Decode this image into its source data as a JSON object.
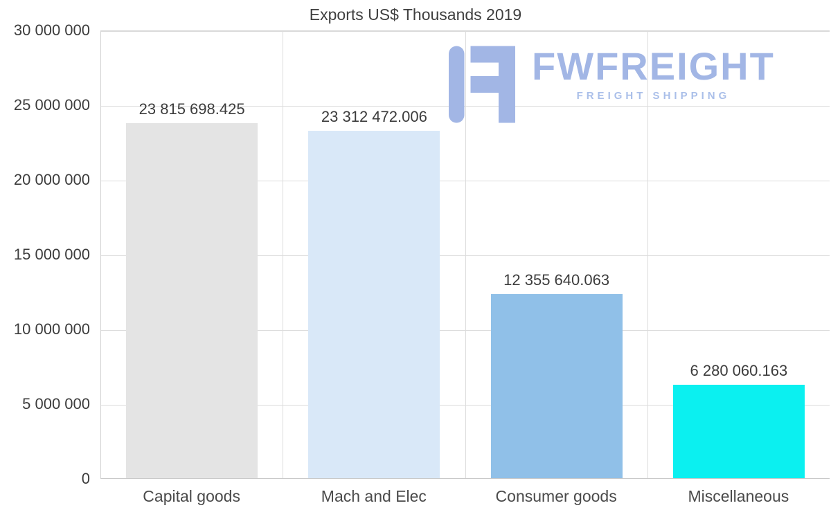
{
  "title": "Exports US$ Thousands 2019",
  "logo": {
    "name": "FWFREIGHT",
    "tagline": "FREIGHT SHIPPING",
    "color": "#a2b6e5"
  },
  "chart_data": {
    "type": "bar",
    "title": "Exports US$ Thousands 2019",
    "categories": [
      "Capital goods",
      "Mach and Elec",
      "Consumer goods",
      "Miscellaneous"
    ],
    "values": [
      23815698.425,
      23312472.006,
      12355640.063,
      6280060.163
    ],
    "value_labels": [
      "23 815 698.425",
      "23 312 472.006",
      "12 355 640.063",
      "6 280 060.163"
    ],
    "bar_colors": [
      "#e4e4e4",
      "#d9e8f8",
      "#90c0e8",
      "#0bf0f0"
    ],
    "xlabel": "",
    "ylabel": "",
    "ylim": [
      0,
      30000000
    ],
    "ytick_labels": [
      "30 000 000",
      "25 000 000",
      "20 000 000",
      "15 000 000",
      "10 000 000",
      "5 000 000",
      "0"
    ],
    "grid": true,
    "legend": "none"
  }
}
